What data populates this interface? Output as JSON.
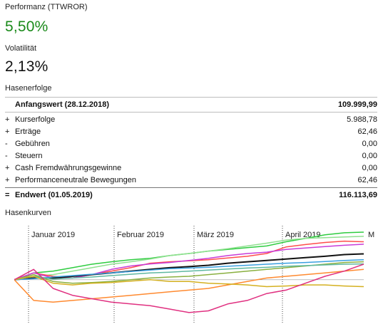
{
  "performance": {
    "ttwror_label": "Performanz (TTWROR)",
    "ttwror_value": "5,50%",
    "ttwror_color": "#1a8a1a",
    "volatility_label": "Volatilität",
    "volatility_value": "2,13%"
  },
  "breakdown": {
    "title": "Hasenerfolge",
    "start": {
      "label": "Anfangswert (28.12.2018)",
      "value": "109.999,99"
    },
    "items": [
      {
        "sign": "+",
        "label": "Kurserfolge",
        "value": "5.988,78"
      },
      {
        "sign": "+",
        "label": "Erträge",
        "value": "62,46"
      },
      {
        "sign": "-",
        "label": "Gebühren",
        "value": "0,00"
      },
      {
        "sign": "-",
        "label": "Steuern",
        "value": "0,00"
      },
      {
        "sign": "+",
        "label": "Cash Fremdwährungsgewinne",
        "value": "0,00"
      },
      {
        "sign": "+",
        "label": "Performanceneutrale Bewegungen",
        "value": "62,46"
      }
    ],
    "end": {
      "sign": "=",
      "label": "Endwert (01.05.2019)",
      "value": "116.113,69"
    }
  },
  "chart_section": {
    "title": "Hasenkurven"
  },
  "chart_data": {
    "type": "line",
    "x_ticks": [
      "Januar 2019",
      "Februar 2019",
      "März 2019",
      "April 2019",
      "M"
    ],
    "x": [
      "28.12.2018",
      "04.01.2019",
      "11.01.2019",
      "18.01.2019",
      "25.01.2019",
      "01.02.2019",
      "08.02.2019",
      "15.02.2019",
      "22.02.2019",
      "01.03.2019",
      "08.03.2019",
      "15.03.2019",
      "22.03.2019",
      "29.03.2019",
      "05.04.2019",
      "12.04.2019",
      "19.04.2019",
      "26.04.2019",
      "01.05.2019"
    ],
    "ylim": [
      -12,
      14
    ],
    "baseline": 0,
    "grid": "vertical dotted at month starts",
    "series": [
      {
        "color": "#2ecc40",
        "values": [
          0,
          2,
          2.5,
          3.5,
          4.5,
          5.2,
          5.8,
          6.2,
          7,
          7.6,
          8.3,
          8.8,
          9.3,
          9.8,
          11,
          12,
          13,
          13.6,
          13.8
        ]
      },
      {
        "color": "#8fe08f",
        "values": [
          0,
          1,
          1.5,
          2.5,
          3.5,
          4.5,
          5.2,
          6,
          7,
          7.6,
          8.3,
          9,
          9.8,
          10.6,
          11.5,
          12,
          12.2,
          12.4,
          12.6
        ]
      },
      {
        "color": "#ff4d4d",
        "values": [
          0,
          2,
          1,
          0.5,
          1.5,
          2.5,
          3.5,
          4.8,
          5.2,
          5.5,
          5.8,
          6.3,
          6.8,
          7.6,
          9.5,
          10.2,
          10.8,
          11.2,
          11
        ]
      },
      {
        "color": "#c83cd8",
        "values": [
          0,
          2,
          0.5,
          0.5,
          1.5,
          3,
          4,
          4.6,
          5,
          5.6,
          6.2,
          7,
          7.6,
          8,
          8.8,
          9.2,
          9.6,
          10,
          10.3
        ]
      },
      {
        "color": "#111111",
        "values": [
          0,
          0.5,
          0.5,
          1,
          1.5,
          2,
          2.5,
          3,
          3.5,
          3.8,
          4.2,
          4.8,
          5.2,
          5.6,
          6,
          6.4,
          6.8,
          7.3,
          7.5
        ]
      },
      {
        "color": "#3aa0e0",
        "values": [
          0,
          0.3,
          0.8,
          1.2,
          1.6,
          2,
          2.4,
          2.8,
          3.2,
          3.4,
          3.6,
          3.9,
          4.2,
          4.5,
          4.8,
          5,
          5.3,
          5.6,
          5.8
        ]
      },
      {
        "color": "#8ab040",
        "values": [
          0,
          1.5,
          -0.5,
          -1,
          -0.8,
          -0.5,
          0,
          0.5,
          0.8,
          1,
          1.5,
          2,
          2.5,
          3,
          3.5,
          4,
          4.5,
          5,
          5.2
        ]
      },
      {
        "color": "#5fb8a0",
        "values": [
          0,
          1,
          0.2,
          0.5,
          0.8,
          1.2,
          1.6,
          2,
          2.2,
          2.5,
          2.8,
          3.1,
          3.4,
          3.6,
          3.9,
          4.1,
          4.3,
          4.5,
          4.6
        ]
      },
      {
        "color": "#ff8a30",
        "values": [
          0,
          -6,
          -6.5,
          -6,
          -5.5,
          -5,
          -4.5,
          -4,
          -3.5,
          -3,
          -2.5,
          -1.5,
          -0.5,
          0.5,
          1,
          1.5,
          2,
          2.5,
          3
        ]
      },
      {
        "color": "#d4b020",
        "values": [
          0,
          1,
          -1,
          -1.5,
          -1,
          -0.8,
          -0.4,
          0,
          -0.5,
          -0.5,
          -1,
          -1.2,
          -1.5,
          -2,
          -1.8,
          -1.5,
          -1.5,
          -1.8,
          -2
        ]
      },
      {
        "color": "#e03080",
        "values": [
          0,
          3,
          -2.5,
          -4.5,
          -5.5,
          -6.5,
          -7,
          -7.5,
          -8.5,
          -9.5,
          -9,
          -7,
          -6,
          -4,
          -3,
          -1,
          1,
          2.5,
          4.5
        ]
      }
    ]
  }
}
